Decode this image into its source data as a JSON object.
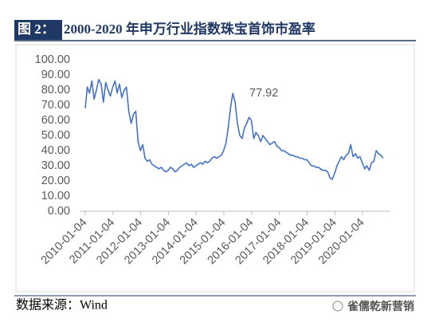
{
  "header": {
    "label": "图 2：",
    "title": "2000-2020 年申万行业指数珠宝首饰市盈率"
  },
  "chart_data": {
    "type": "line",
    "x": [
      "2010-01-04",
      "2010-02-01",
      "2010-03-01",
      "2010-04-01",
      "2010-05-01",
      "2010-06-01",
      "2010-07-01",
      "2010-08-01",
      "2010-09-01",
      "2010-10-01",
      "2010-11-01",
      "2010-12-01",
      "2011-01-01",
      "2011-02-01",
      "2011-03-01",
      "2011-04-01",
      "2011-05-01",
      "2011-06-01",
      "2011-07-01",
      "2011-08-01",
      "2011-09-01",
      "2011-10-01",
      "2011-11-01",
      "2011-12-01",
      "2012-01-01",
      "2012-02-01",
      "2012-03-01",
      "2012-04-01",
      "2012-05-01",
      "2012-06-01",
      "2012-07-01",
      "2012-08-01",
      "2012-09-01",
      "2012-10-01",
      "2012-11-01",
      "2012-12-01",
      "2013-01-01",
      "2013-02-01",
      "2013-03-01",
      "2013-04-01",
      "2013-05-01",
      "2013-06-01",
      "2013-07-01",
      "2013-08-01",
      "2013-09-01",
      "2013-10-01",
      "2013-11-01",
      "2013-12-01",
      "2014-01-01",
      "2014-02-01",
      "2014-03-01",
      "2014-04-01",
      "2014-05-01",
      "2014-06-01",
      "2014-07-01",
      "2014-08-01",
      "2014-09-01",
      "2014-10-01",
      "2014-11-01",
      "2014-12-01",
      "2015-01-01",
      "2015-02-01",
      "2015-03-01",
      "2015-04-01",
      "2015-05-01",
      "2015-06-01",
      "2015-07-01",
      "2015-08-01",
      "2015-09-01",
      "2015-10-01",
      "2015-11-01",
      "2015-12-01",
      "2016-01-01",
      "2016-02-01",
      "2016-03-01",
      "2016-04-01",
      "2016-05-01",
      "2016-06-01",
      "2016-07-01",
      "2016-08-01",
      "2016-09-01",
      "2016-10-01",
      "2016-11-01",
      "2016-12-01",
      "2017-01-01",
      "2017-02-01",
      "2017-03-01",
      "2017-04-01",
      "2017-05-01",
      "2017-06-01",
      "2017-07-01",
      "2017-08-01",
      "2017-09-01",
      "2017-10-01",
      "2017-11-01",
      "2017-12-01",
      "2018-01-01",
      "2018-02-01",
      "2018-03-01",
      "2018-04-01",
      "2018-05-01",
      "2018-06-01",
      "2018-07-01",
      "2018-08-01",
      "2018-09-01",
      "2018-10-01",
      "2018-11-01",
      "2018-12-01",
      "2019-01-01",
      "2019-02-01",
      "2019-03-01",
      "2019-04-01",
      "2019-05-01",
      "2019-06-01",
      "2019-07-01",
      "2019-08-01",
      "2019-09-01",
      "2019-10-01",
      "2019-11-01",
      "2019-12-01",
      "2020-01-01",
      "2020-02-01",
      "2020-03-01",
      "2020-04-01",
      "2020-05-01",
      "2020-06-01",
      "2020-07-01",
      "2020-08-01",
      "2020-09-01",
      "2020-10-01"
    ],
    "series": [
      {
        "color": "#4472c4",
        "values": [
          68,
          82,
          78,
          86,
          74,
          80,
          87,
          84,
          72,
          85,
          80,
          76,
          82,
          86,
          78,
          84,
          75,
          80,
          82,
          66,
          58,
          64,
          66,
          46,
          40,
          44,
          35,
          33,
          34,
          31,
          30,
          29,
          28,
          29,
          27,
          26,
          27,
          29,
          28,
          26,
          27,
          29,
          30,
          31,
          32,
          30,
          31,
          29,
          30,
          31,
          32,
          31,
          33,
          32,
          33,
          35,
          36,
          35,
          36,
          37,
          40,
          45,
          55,
          68,
          77.92,
          72,
          58,
          50,
          48,
          55,
          58,
          62,
          60,
          48,
          52,
          50,
          46,
          50,
          48,
          46,
          44,
          45,
          46,
          43,
          42,
          40,
          40,
          39,
          38,
          37,
          37,
          36,
          36,
          35,
          35,
          34,
          34,
          32,
          30,
          30,
          29,
          29,
          28,
          27,
          27,
          26,
          22,
          21,
          25,
          30,
          33,
          36,
          34,
          37,
          38,
          44,
          36,
          38,
          35,
          36,
          32,
          28,
          30,
          27,
          32,
          33,
          40,
          38,
          37,
          35
        ]
      }
    ],
    "annotation": "77.92",
    "xlim": [
      "2009-10-23",
      "2021-01-04"
    ],
    "xticks": [
      "2010-01-04",
      "2011-01-04",
      "2012-01-04",
      "2013-01-04",
      "2014-01-04",
      "2015-01-04",
      "2016-01-04",
      "2017-01-04",
      "2018-01-04",
      "2019-01-04",
      "2020-01-04"
    ],
    "ylim": [
      0,
      100
    ],
    "yticks": [
      {
        "value": 0,
        "label": "0.00"
      },
      {
        "value": 10,
        "label": "10.00"
      },
      {
        "value": 20,
        "label": "20.00"
      },
      {
        "value": 30,
        "label": "30.00"
      },
      {
        "value": 40,
        "label": "40.00"
      },
      {
        "value": 50,
        "label": "50.00"
      },
      {
        "value": 60,
        "label": "60.00"
      },
      {
        "value": 70,
        "label": "70.00"
      },
      {
        "value": 80,
        "label": "80.00"
      },
      {
        "value": 90,
        "label": "90.00"
      },
      {
        "value": 100,
        "label": "100.00"
      }
    ]
  },
  "footer": {
    "source": "数据来源：Wind",
    "watermark": "雀儒乾新营销"
  }
}
